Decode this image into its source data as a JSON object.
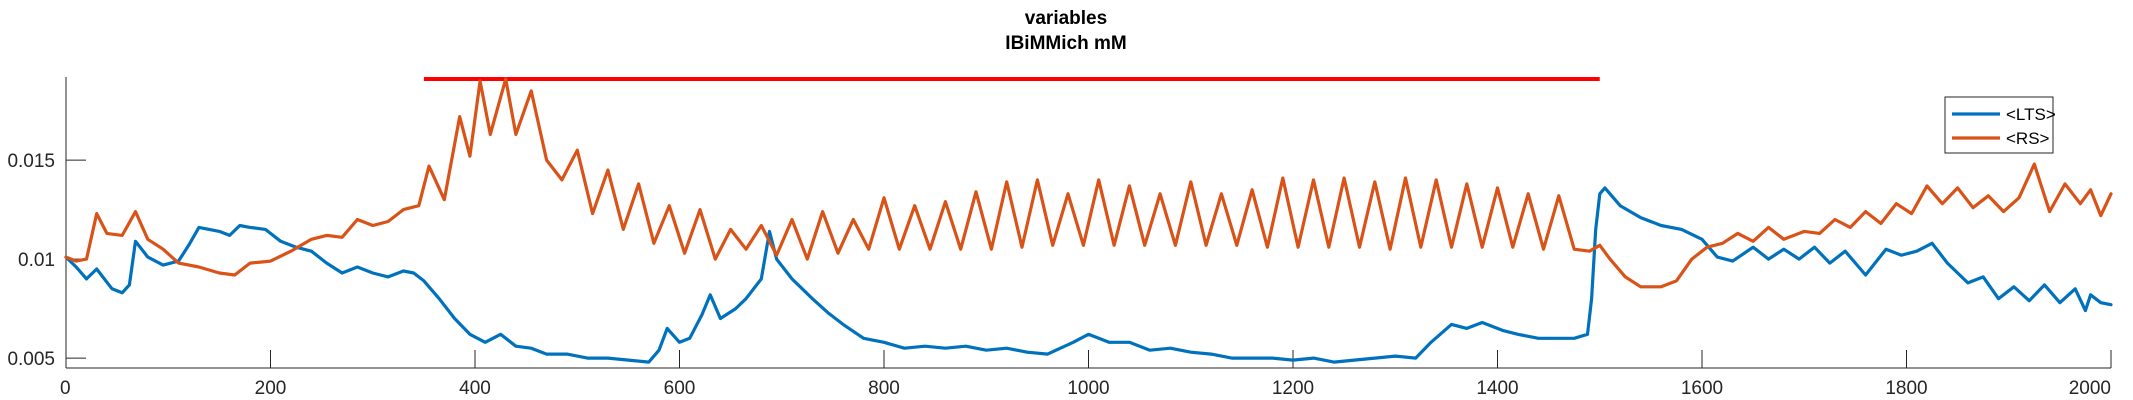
{
  "chart_data": {
    "type": "line",
    "title": "variables",
    "subtitle": "IBiMMich mM",
    "xlabel": "",
    "ylabel": "",
    "xlim": [
      0,
      2000
    ],
    "ylim": [
      0.0045,
      0.0192
    ],
    "x_ticks": [
      {
        "value": 0,
        "label": "0"
      },
      {
        "value": 200,
        "label": "200"
      },
      {
        "value": 400,
        "label": "400"
      },
      {
        "value": 600,
        "label": "600"
      },
      {
        "value": 800,
        "label": "800"
      },
      {
        "value": 1000,
        "label": "1000"
      },
      {
        "value": 1200,
        "label": "1200"
      },
      {
        "value": 1400,
        "label": "1400"
      },
      {
        "value": 1600,
        "label": "1600"
      },
      {
        "value": 1800,
        "label": "1800"
      },
      {
        "value": 2000,
        "label": "2000"
      }
    ],
    "y_ticks": [
      {
        "value": 0.005,
        "label": "0.005"
      },
      {
        "value": 0.01,
        "label": "0.01"
      },
      {
        "value": 0.015,
        "label": "0.015"
      }
    ],
    "grid": false,
    "legend_position": "top-right",
    "stimulus_bar": {
      "x_start": 350,
      "x_end": 1500,
      "y": 0.0191,
      "color": "#ff0000"
    },
    "series": [
      {
        "name": "<LTS>",
        "color": "#0072bd",
        "points": [
          [
            0,
            0.0101
          ],
          [
            10,
            0.0096
          ],
          [
            20,
            0.009
          ],
          [
            30,
            0.0095
          ],
          [
            45,
            0.0085
          ],
          [
            55,
            0.0083
          ],
          [
            62,
            0.0087
          ],
          [
            68,
            0.0109
          ],
          [
            80,
            0.0101
          ],
          [
            95,
            0.0097
          ],
          [
            110,
            0.0099
          ],
          [
            120,
            0.0107
          ],
          [
            130,
            0.0116
          ],
          [
            140,
            0.0115
          ],
          [
            150,
            0.0114
          ],
          [
            160,
            0.0112
          ],
          [
            170,
            0.0117
          ],
          [
            180,
            0.0116
          ],
          [
            195,
            0.0115
          ],
          [
            210,
            0.0109
          ],
          [
            225,
            0.0106
          ],
          [
            240,
            0.0104
          ],
          [
            255,
            0.0098
          ],
          [
            270,
            0.0093
          ],
          [
            285,
            0.0096
          ],
          [
            300,
            0.0093
          ],
          [
            315,
            0.0091
          ],
          [
            330,
            0.0094
          ],
          [
            340,
            0.0093
          ],
          [
            350,
            0.0089
          ],
          [
            365,
            0.008
          ],
          [
            380,
            0.007
          ],
          [
            395,
            0.0062
          ],
          [
            410,
            0.0058
          ],
          [
            425,
            0.0062
          ],
          [
            440,
            0.0056
          ],
          [
            455,
            0.0055
          ],
          [
            470,
            0.0052
          ],
          [
            490,
            0.0052
          ],
          [
            510,
            0.005
          ],
          [
            530,
            0.005
          ],
          [
            550,
            0.0049
          ],
          [
            570,
            0.0048
          ],
          [
            580,
            0.0054
          ],
          [
            588,
            0.0065
          ],
          [
            600,
            0.0058
          ],
          [
            610,
            0.006
          ],
          [
            622,
            0.0072
          ],
          [
            630,
            0.0082
          ],
          [
            640,
            0.007
          ],
          [
            655,
            0.0075
          ],
          [
            665,
            0.008
          ],
          [
            680,
            0.009
          ],
          [
            688,
            0.0114
          ],
          [
            695,
            0.01
          ],
          [
            710,
            0.009
          ],
          [
            730,
            0.008
          ],
          [
            745,
            0.0073
          ],
          [
            760,
            0.0067
          ],
          [
            780,
            0.006
          ],
          [
            800,
            0.0058
          ],
          [
            820,
            0.0055
          ],
          [
            840,
            0.0056
          ],
          [
            860,
            0.0055
          ],
          [
            880,
            0.0056
          ],
          [
            900,
            0.0054
          ],
          [
            920,
            0.0055
          ],
          [
            940,
            0.0053
          ],
          [
            960,
            0.0052
          ],
          [
            985,
            0.0058
          ],
          [
            1000,
            0.0062
          ],
          [
            1020,
            0.0058
          ],
          [
            1040,
            0.0058
          ],
          [
            1060,
            0.0054
          ],
          [
            1080,
            0.0055
          ],
          [
            1100,
            0.0053
          ],
          [
            1120,
            0.0052
          ],
          [
            1140,
            0.005
          ],
          [
            1160,
            0.005
          ],
          [
            1180,
            0.005
          ],
          [
            1200,
            0.0049
          ],
          [
            1220,
            0.005
          ],
          [
            1240,
            0.0048
          ],
          [
            1260,
            0.0049
          ],
          [
            1280,
            0.005
          ],
          [
            1300,
            0.0051
          ],
          [
            1320,
            0.005
          ],
          [
            1335,
            0.0058
          ],
          [
            1355,
            0.0067
          ],
          [
            1370,
            0.0065
          ],
          [
            1385,
            0.0068
          ],
          [
            1405,
            0.0064
          ],
          [
            1420,
            0.0062
          ],
          [
            1440,
            0.006
          ],
          [
            1460,
            0.006
          ],
          [
            1475,
            0.006
          ],
          [
            1488,
            0.0062
          ],
          [
            1492,
            0.008
          ],
          [
            1496,
            0.0115
          ],
          [
            1500,
            0.0133
          ],
          [
            1505,
            0.0136
          ],
          [
            1520,
            0.0127
          ],
          [
            1540,
            0.0121
          ],
          [
            1560,
            0.0117
          ],
          [
            1580,
            0.0115
          ],
          [
            1600,
            0.011
          ],
          [
            1615,
            0.0101
          ],
          [
            1630,
            0.0099
          ],
          [
            1650,
            0.0106
          ],
          [
            1665,
            0.01
          ],
          [
            1680,
            0.0105
          ],
          [
            1695,
            0.01
          ],
          [
            1710,
            0.0106
          ],
          [
            1725,
            0.0098
          ],
          [
            1740,
            0.0104
          ],
          [
            1760,
            0.0092
          ],
          [
            1780,
            0.0105
          ],
          [
            1795,
            0.0102
          ],
          [
            1810,
            0.0104
          ],
          [
            1825,
            0.0108
          ],
          [
            1840,
            0.0098
          ],
          [
            1860,
            0.0088
          ],
          [
            1875,
            0.0091
          ],
          [
            1890,
            0.008
          ],
          [
            1905,
            0.0086
          ],
          [
            1920,
            0.0079
          ],
          [
            1935,
            0.0087
          ],
          [
            1950,
            0.0078
          ],
          [
            1965,
            0.0085
          ],
          [
            1975,
            0.0074
          ],
          [
            1980,
            0.0082
          ],
          [
            1990,
            0.0078
          ],
          [
            2000,
            0.0077
          ]
        ]
      },
      {
        "name": "<RS>",
        "color": "#d95319",
        "points": [
          [
            0,
            0.0101
          ],
          [
            10,
            0.0099
          ],
          [
            20,
            0.01
          ],
          [
            30,
            0.0123
          ],
          [
            40,
            0.0113
          ],
          [
            55,
            0.0112
          ],
          [
            68,
            0.0124
          ],
          [
            80,
            0.011
          ],
          [
            95,
            0.0105
          ],
          [
            110,
            0.0098
          ],
          [
            130,
            0.0096
          ],
          [
            150,
            0.0093
          ],
          [
            165,
            0.0092
          ],
          [
            180,
            0.0098
          ],
          [
            200,
            0.0099
          ],
          [
            220,
            0.0104
          ],
          [
            240,
            0.011
          ],
          [
            255,
            0.0112
          ],
          [
            270,
            0.0111
          ],
          [
            285,
            0.012
          ],
          [
            300,
            0.0117
          ],
          [
            315,
            0.0119
          ],
          [
            330,
            0.0125
          ],
          [
            345,
            0.0127
          ],
          [
            355,
            0.0147
          ],
          [
            370,
            0.013
          ],
          [
            385,
            0.0172
          ],
          [
            395,
            0.0152
          ],
          [
            405,
            0.019
          ],
          [
            415,
            0.0163
          ],
          [
            430,
            0.0191
          ],
          [
            440,
            0.0163
          ],
          [
            455,
            0.0185
          ],
          [
            470,
            0.015
          ],
          [
            485,
            0.014
          ],
          [
            500,
            0.0155
          ],
          [
            515,
            0.0123
          ],
          [
            530,
            0.0145
          ],
          [
            545,
            0.0115
          ],
          [
            560,
            0.0138
          ],
          [
            575,
            0.0108
          ],
          [
            590,
            0.0127
          ],
          [
            605,
            0.0103
          ],
          [
            620,
            0.0125
          ],
          [
            635,
            0.01
          ],
          [
            650,
            0.0115
          ],
          [
            665,
            0.0105
          ],
          [
            680,
            0.0117
          ],
          [
            695,
            0.0102
          ],
          [
            710,
            0.012
          ],
          [
            725,
            0.01
          ],
          [
            740,
            0.0124
          ],
          [
            755,
            0.0103
          ],
          [
            770,
            0.012
          ],
          [
            785,
            0.0105
          ],
          [
            800,
            0.0131
          ],
          [
            815,
            0.0105
          ],
          [
            830,
            0.0127
          ],
          [
            845,
            0.0105
          ],
          [
            860,
            0.0129
          ],
          [
            875,
            0.0105
          ],
          [
            890,
            0.0134
          ],
          [
            905,
            0.0105
          ],
          [
            920,
            0.0139
          ],
          [
            935,
            0.0106
          ],
          [
            950,
            0.014
          ],
          [
            965,
            0.0107
          ],
          [
            980,
            0.0133
          ],
          [
            995,
            0.0107
          ],
          [
            1010,
            0.014
          ],
          [
            1025,
            0.0107
          ],
          [
            1040,
            0.0137
          ],
          [
            1055,
            0.0107
          ],
          [
            1070,
            0.0133
          ],
          [
            1085,
            0.0107
          ],
          [
            1100,
            0.0139
          ],
          [
            1115,
            0.0107
          ],
          [
            1130,
            0.0133
          ],
          [
            1145,
            0.0107
          ],
          [
            1160,
            0.0135
          ],
          [
            1175,
            0.0106
          ],
          [
            1190,
            0.0141
          ],
          [
            1205,
            0.0106
          ],
          [
            1220,
            0.014
          ],
          [
            1235,
            0.0106
          ],
          [
            1250,
            0.0141
          ],
          [
            1265,
            0.0106
          ],
          [
            1280,
            0.0139
          ],
          [
            1295,
            0.0105
          ],
          [
            1310,
            0.0141
          ],
          [
            1325,
            0.0106
          ],
          [
            1340,
            0.014
          ],
          [
            1355,
            0.0106
          ],
          [
            1370,
            0.0138
          ],
          [
            1385,
            0.0106
          ],
          [
            1400,
            0.0136
          ],
          [
            1415,
            0.0106
          ],
          [
            1430,
            0.0133
          ],
          [
            1445,
            0.0105
          ],
          [
            1460,
            0.0132
          ],
          [
            1475,
            0.0105
          ],
          [
            1490,
            0.0104
          ],
          [
            1500,
            0.0107
          ],
          [
            1510,
            0.01
          ],
          [
            1525,
            0.0091
          ],
          [
            1540,
            0.0086
          ],
          [
            1560,
            0.0086
          ],
          [
            1575,
            0.0089
          ],
          [
            1590,
            0.01
          ],
          [
            1605,
            0.0106
          ],
          [
            1620,
            0.0108
          ],
          [
            1635,
            0.0113
          ],
          [
            1650,
            0.0109
          ],
          [
            1665,
            0.0116
          ],
          [
            1680,
            0.011
          ],
          [
            1700,
            0.0114
          ],
          [
            1715,
            0.0113
          ],
          [
            1730,
            0.012
          ],
          [
            1745,
            0.0116
          ],
          [
            1760,
            0.0124
          ],
          [
            1775,
            0.0118
          ],
          [
            1790,
            0.0128
          ],
          [
            1805,
            0.0123
          ],
          [
            1820,
            0.0137
          ],
          [
            1835,
            0.0128
          ],
          [
            1850,
            0.0136
          ],
          [
            1865,
            0.0126
          ],
          [
            1880,
            0.0132
          ],
          [
            1895,
            0.0124
          ],
          [
            1910,
            0.0131
          ],
          [
            1925,
            0.0148
          ],
          [
            1940,
            0.0124
          ],
          [
            1955,
            0.0138
          ],
          [
            1970,
            0.0128
          ],
          [
            1980,
            0.0135
          ],
          [
            1990,
            0.0122
          ],
          [
            2000,
            0.0133
          ]
        ]
      }
    ]
  }
}
